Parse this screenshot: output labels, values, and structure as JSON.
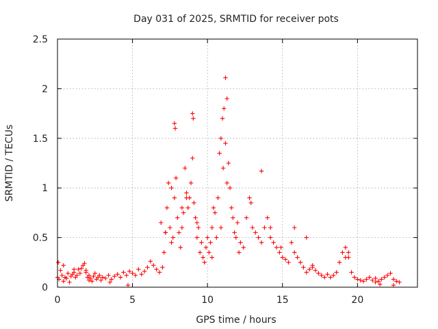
{
  "chart_data": {
    "type": "scatter",
    "title": "Day 031 of 2025, SRMTID for receiver pots",
    "xlabel": "GPS time / hours",
    "ylabel": "SRMTID / TECUs",
    "xlim": [
      0,
      24
    ],
    "ylim": [
      0,
      2.5
    ],
    "x_ticks": [
      0,
      5,
      10,
      15,
      20
    ],
    "x_tick_labels": [
      "0",
      "5",
      "10",
      "15",
      "20"
    ],
    "y_ticks": [
      0,
      0.5,
      1,
      1.5,
      2,
      2.5
    ],
    "y_tick_labels": [
      "0",
      "0.5",
      "1",
      "1.5",
      "2",
      "2.5"
    ],
    "grid": true,
    "marker": "+",
    "series_color": "#ff0000",
    "series": [
      {
        "name": "SRMTID",
        "x": [
          0.0,
          0.1,
          0.2,
          0.3,
          0.4,
          0.5,
          0.6,
          0.7,
          0.8,
          0.9,
          1.0,
          1.1,
          1.2,
          1.3,
          1.4,
          1.5,
          1.6,
          1.7,
          1.8,
          1.9,
          2.0,
          2.1,
          2.2,
          2.3,
          2.4,
          2.5,
          2.6,
          2.7,
          2.8,
          2.9,
          3.0,
          3.2,
          3.4,
          3.6,
          3.8,
          4.0,
          4.2,
          4.4,
          4.6,
          4.8,
          5.0,
          5.2,
          5.4,
          5.6,
          5.8,
          6.0,
          6.2,
          6.4,
          6.6,
          6.8,
          7.0,
          7.1,
          7.2,
          7.3,
          7.4,
          7.5,
          7.6,
          7.7,
          7.8,
          7.9,
          8.0,
          8.1,
          8.2,
          8.3,
          8.4,
          8.5,
          8.6,
          8.7,
          8.8,
          8.9,
          9.0,
          9.1,
          9.2,
          9.3,
          9.4,
          9.5,
          9.6,
          9.7,
          9.8,
          9.9,
          10.0,
          10.1,
          10.2,
          10.3,
          10.4,
          10.5,
          10.6,
          10.7,
          10.8,
          10.9,
          11.0,
          11.1,
          11.2,
          11.3,
          11.4,
          11.5,
          11.6,
          11.7,
          11.8,
          11.9,
          12.0,
          12.2,
          12.4,
          12.6,
          12.8,
          13.0,
          13.2,
          13.4,
          13.6,
          13.8,
          14.0,
          14.2,
          14.4,
          14.6,
          14.8,
          15.0,
          15.2,
          15.4,
          15.6,
          15.8,
          16.0,
          16.2,
          16.4,
          16.6,
          16.8,
          17.0,
          17.2,
          17.4,
          17.6,
          17.8,
          18.0,
          18.2,
          18.4,
          18.6,
          18.8,
          19.0,
          19.2,
          19.4,
          19.6,
          19.8,
          20.0,
          20.2,
          20.4,
          20.6,
          20.8,
          21.0,
          21.2,
          21.4,
          21.6,
          21.8,
          22.0,
          22.2,
          22.4,
          22.6,
          22.8,
          7.8,
          7.85,
          9.0,
          9.05,
          11.2,
          11.3,
          11.05,
          13.6,
          12.9,
          6.9,
          7.2,
          7.6,
          8.3,
          8.6,
          9.3,
          10.3,
          10.9,
          12.1,
          14.2,
          14.9,
          15.8,
          16.6,
          17.0,
          19.2,
          19.4,
          0.4,
          1.1,
          1.9,
          3.5,
          4.7,
          21.5,
          22.4,
          0.05,
          2.1,
          21.2
        ],
        "y": [
          0.1,
          0.08,
          0.17,
          0.12,
          0.06,
          0.1,
          0.09,
          0.14,
          0.05,
          0.11,
          0.13,
          0.15,
          0.1,
          0.12,
          0.18,
          0.14,
          0.19,
          0.22,
          0.24,
          0.17,
          0.1,
          0.12,
          0.09,
          0.06,
          0.11,
          0.14,
          0.08,
          0.1,
          0.12,
          0.07,
          0.1,
          0.09,
          0.12,
          0.08,
          0.11,
          0.13,
          0.1,
          0.15,
          0.12,
          0.16,
          0.14,
          0.12,
          0.18,
          0.13,
          0.16,
          0.2,
          0.26,
          0.22,
          0.18,
          0.15,
          0.2,
          0.35,
          0.55,
          0.8,
          1.05,
          0.6,
          0.45,
          0.5,
          0.9,
          1.1,
          0.7,
          0.55,
          0.4,
          0.6,
          0.75,
          1.2,
          0.95,
          0.8,
          0.9,
          1.05,
          1.3,
          0.85,
          0.7,
          0.5,
          0.6,
          0.35,
          0.45,
          0.3,
          0.25,
          0.4,
          0.5,
          0.35,
          0.45,
          0.6,
          0.8,
          0.75,
          0.5,
          0.9,
          1.35,
          1.5,
          1.7,
          1.8,
          1.45,
          1.05,
          1.25,
          1.0,
          0.8,
          0.7,
          0.55,
          0.5,
          0.65,
          0.45,
          0.4,
          0.7,
          0.9,
          0.6,
          0.55,
          0.5,
          0.45,
          0.6,
          0.7,
          0.5,
          0.45,
          0.4,
          0.35,
          0.3,
          0.28,
          0.25,
          0.45,
          0.6,
          0.3,
          0.25,
          0.2,
          0.15,
          0.18,
          0.22,
          0.17,
          0.14,
          0.12,
          0.1,
          0.13,
          0.1,
          0.12,
          0.15,
          0.25,
          0.35,
          0.4,
          0.3,
          0.15,
          0.1,
          0.08,
          0.07,
          0.06,
          0.08,
          0.1,
          0.07,
          0.09,
          0.06,
          0.08,
          0.1,
          0.12,
          0.14,
          0.08,
          0.06,
          0.05,
          1.65,
          1.6,
          1.75,
          1.7,
          2.11,
          1.9,
          1.2,
          1.17,
          0.85,
          0.65,
          0.55,
          1.0,
          0.8,
          0.9,
          0.65,
          0.3,
          0.6,
          0.35,
          0.6,
          0.4,
          0.35,
          0.5,
          0.2,
          0.3,
          0.35,
          0.22,
          0.18,
          0.15,
          0.05,
          0.02,
          0.03,
          0.02,
          0.25,
          0.07,
          0.05
        ]
      }
    ]
  }
}
